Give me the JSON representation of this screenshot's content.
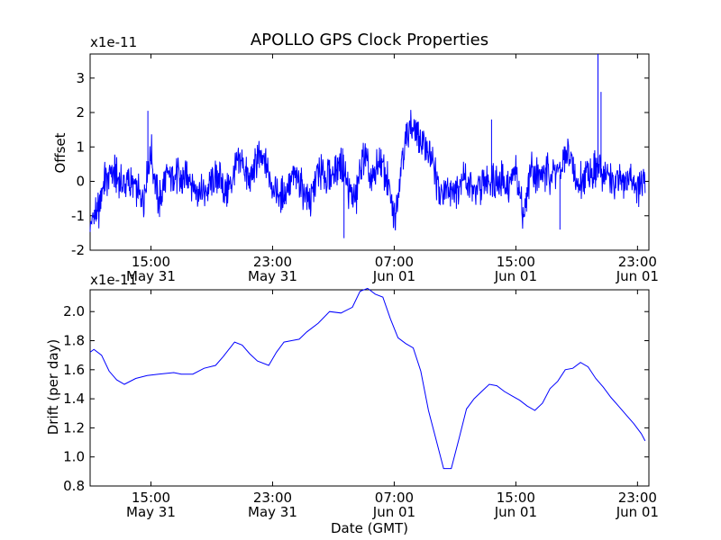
{
  "title": "APOLLO GPS Clock Properties",
  "chart_data": [
    {
      "type": "line",
      "ylabel": "Offset",
      "multiplier": "x1e-11",
      "ylim": [
        -2,
        3.7
      ],
      "yticks": [
        -2,
        -1,
        0,
        1,
        2,
        3
      ],
      "ytick_labels": [
        "-2",
        "-1",
        "0",
        "1",
        "2",
        "3"
      ],
      "xlim": [
        "2013-05-31 11:00",
        "2013-06-01 23:45"
      ],
      "xtick_labels": [
        {
          "time": "15:00",
          "date": "May 31"
        },
        {
          "time": "23:00",
          "date": "May 31"
        },
        {
          "time": "07:00",
          "date": "Jun 01"
        },
        {
          "time": "15:00",
          "date": "Jun 01"
        },
        {
          "time": "23:00",
          "date": "Jun 01"
        }
      ],
      "series": [
        {
          "color": "#0000ff",
          "x_hours_since_start": [
            0.0,
            0.5,
            1.0,
            1.5,
            2.0,
            2.5,
            3.0,
            3.5,
            4.0,
            4.5,
            5.0,
            5.5,
            6.0,
            6.5,
            7.0,
            7.5,
            8.0,
            8.5,
            9.0,
            9.5,
            10.0,
            10.5,
            11.0,
            11.5,
            12.0,
            12.5,
            13.0,
            13.5,
            14.0,
            14.5,
            15.0,
            15.5,
            16.0,
            16.5,
            17.0,
            17.5,
            18.0,
            18.5,
            19.0,
            19.5,
            20.0,
            20.5,
            21.0,
            21.5,
            22.0,
            22.5,
            23.0,
            23.5,
            24.0,
            24.5,
            25.0,
            25.5,
            26.0,
            26.5,
            27.0,
            27.5,
            28.0,
            28.5,
            29.0,
            29.5,
            30.0,
            30.5,
            31.0,
            31.5,
            32.0,
            32.5,
            33.0,
            33.5,
            34.0,
            34.5,
            35.0,
            35.5,
            36.0,
            36.5
          ],
          "values": [
            -1.2,
            -0.9,
            0.1,
            0.3,
            -0.1,
            0.0,
            -0.3,
            -0.5,
            0.9,
            -0.6,
            0.1,
            0.3,
            -0.1,
            0.2,
            -0.2,
            -0.4,
            0.0,
            0.2,
            -0.3,
            0.3,
            0.6,
            -0.1,
            0.7,
            0.5,
            -0.1,
            -0.5,
            -0.2,
            0.2,
            -0.2,
            -0.6,
            0.4,
            0.1,
            0.2,
            0.6,
            -0.3,
            -0.5,
            0.8,
            -0.1,
            0.6,
            0.1,
            -1.1,
            0.7,
            1.6,
            1.3,
            1.1,
            0.6,
            -0.4,
            -0.1,
            -0.3,
            0.2,
            -0.2,
            -0.3,
            0.0,
            0.1,
            0.1,
            -0.2,
            0.4,
            -1.0,
            0.4,
            0.1,
            0.2,
            0.3,
            0.3,
            0.9,
            -0.2,
            0.2,
            0.3,
            0.3,
            0.2,
            -0.1,
            0.0,
            0.1,
            -0.2,
            0.0
          ]
        }
      ]
    },
    {
      "type": "line",
      "ylabel": "Drift (per day)",
      "xlabel": "Date (GMT)",
      "multiplier": "x1e-11",
      "ylim": [
        0.8,
        2.15
      ],
      "yticks": [
        0.8,
        1.0,
        1.2,
        1.4,
        1.6,
        1.8,
        2.0
      ],
      "ytick_labels": [
        "0.8",
        "1.0",
        "1.2",
        "1.4",
        "1.6",
        "1.8",
        "2.0"
      ],
      "xlim": [
        "2013-05-31 11:00",
        "2013-06-01 23:45"
      ],
      "xtick_labels": [
        {
          "time": "15:00",
          "date": "May 31"
        },
        {
          "time": "23:00",
          "date": "May 31"
        },
        {
          "time": "07:00",
          "date": "Jun 01"
        },
        {
          "time": "15:00",
          "date": "Jun 01"
        },
        {
          "time": "23:00",
          "date": "Jun 01"
        }
      ],
      "series": [
        {
          "color": "#0000ff",
          "x_hours_since_start": [
            0.0,
            0.25,
            0.75,
            1.25,
            1.75,
            2.25,
            3.0,
            3.75,
            4.5,
            5.5,
            6.0,
            6.75,
            7.5,
            8.25,
            8.75,
            9.5,
            10.0,
            10.5,
            11.0,
            11.75,
            12.25,
            12.75,
            13.25,
            13.75,
            14.25,
            15.0,
            15.75,
            16.5,
            17.25,
            17.75,
            18.25,
            18.75,
            19.25,
            19.75,
            20.25,
            20.75,
            21.25,
            21.75,
            22.25,
            22.75,
            23.25,
            23.75,
            24.25,
            24.75,
            25.25,
            25.75,
            26.25,
            26.75,
            27.25,
            27.75,
            28.25,
            28.75,
            29.25,
            29.75,
            30.25,
            30.75,
            31.25,
            31.75,
            32.25,
            32.75,
            33.25,
            33.75,
            34.25,
            34.75,
            35.25,
            35.75,
            36.25,
            36.5
          ],
          "values": [
            1.72,
            1.74,
            1.7,
            1.59,
            1.53,
            1.5,
            1.54,
            1.56,
            1.57,
            1.58,
            1.57,
            1.57,
            1.61,
            1.63,
            1.69,
            1.79,
            1.77,
            1.71,
            1.66,
            1.63,
            1.72,
            1.79,
            1.8,
            1.81,
            1.86,
            1.92,
            2.0,
            1.99,
            2.03,
            2.14,
            2.16,
            2.12,
            2.1,
            1.95,
            1.82,
            1.78,
            1.75,
            1.59,
            1.32,
            1.12,
            0.92,
            0.92,
            1.12,
            1.33,
            1.4,
            1.45,
            1.5,
            1.49,
            1.45,
            1.42,
            1.39,
            1.35,
            1.32,
            1.37,
            1.47,
            1.52,
            1.6,
            1.61,
            1.65,
            1.62,
            1.54,
            1.48,
            1.41,
            1.35,
            1.29,
            1.23,
            1.16,
            1.11
          ]
        }
      ]
    }
  ]
}
